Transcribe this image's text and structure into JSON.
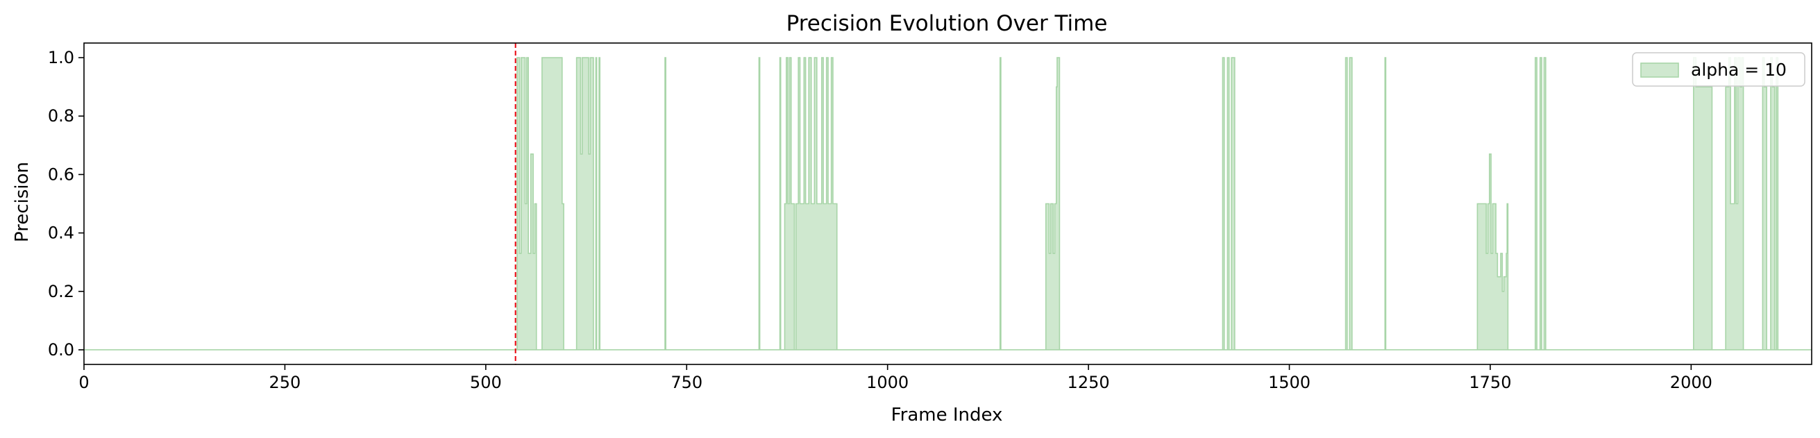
{
  "chart_data": {
    "type": "area",
    "title": "Precision Evolution Over Time",
    "xlabel": "Frame Index",
    "ylabel": "Precision",
    "xlim": [
      0,
      2150
    ],
    "ylim": [
      -0.05,
      1.05
    ],
    "xticks": [
      0,
      250,
      500,
      750,
      1000,
      1250,
      1500,
      1750,
      2000
    ],
    "yticks": [
      0.0,
      0.2,
      0.4,
      0.6,
      0.8,
      1.0
    ],
    "xtick_labels": [
      "0",
      "250",
      "500",
      "750",
      "1000",
      "1250",
      "1500",
      "1750",
      "2000"
    ],
    "ytick_labels": [
      "0.0",
      "0.2",
      "0.4",
      "0.6",
      "0.8",
      "1.0"
    ],
    "grid": false,
    "legend": {
      "position": "top-right",
      "entries": [
        "alpha = 10"
      ]
    },
    "vline": {
      "x": 537,
      "color": "#e8000b",
      "style": "dashed"
    },
    "series": [
      {
        "name": "alpha = 10",
        "color": "#a8d5a8",
        "points": [
          [
            0,
            0
          ],
          [
            537,
            0
          ],
          [
            539,
            0
          ],
          [
            539,
            1
          ],
          [
            542,
            1
          ],
          [
            542,
            0.33
          ],
          [
            544,
            0.33
          ],
          [
            544,
            1
          ],
          [
            549,
            1
          ],
          [
            549,
            0.5
          ],
          [
            551,
            0.5
          ],
          [
            551,
            1
          ],
          [
            553,
            1
          ],
          [
            553,
            0.33
          ],
          [
            556,
            0.33
          ],
          [
            556,
            0.67
          ],
          [
            559,
            0.67
          ],
          [
            559,
            0.33
          ],
          [
            561,
            0.33
          ],
          [
            561,
            0.5
          ],
          [
            563,
            0.5
          ],
          [
            563,
            0
          ],
          [
            570,
            0
          ],
          [
            570,
            1
          ],
          [
            595,
            1
          ],
          [
            595,
            0.5
          ],
          [
            597,
            0.5
          ],
          [
            597,
            0
          ],
          [
            613,
            0
          ],
          [
            613,
            1
          ],
          [
            618,
            1
          ],
          [
            618,
            0.67
          ],
          [
            620,
            0.67
          ],
          [
            620,
            1
          ],
          [
            628,
            1
          ],
          [
            628,
            0.67
          ],
          [
            630,
            0.67
          ],
          [
            630,
            1
          ],
          [
            634,
            1
          ],
          [
            634,
            0
          ],
          [
            637,
            0
          ],
          [
            637,
            1
          ],
          [
            638,
            1
          ],
          [
            638,
            0
          ],
          [
            641,
            0
          ],
          [
            641,
            1
          ],
          [
            642,
            1
          ],
          [
            642,
            0
          ],
          [
            723,
            0
          ],
          [
            723,
            1
          ],
          [
            724,
            1
          ],
          [
            724,
            0
          ],
          [
            840,
            0
          ],
          [
            840,
            1
          ],
          [
            841,
            1
          ],
          [
            841,
            0
          ],
          [
            866,
            0
          ],
          [
            866,
            1
          ],
          [
            867,
            1
          ],
          [
            867,
            0
          ],
          [
            872,
            0
          ],
          [
            872,
            0.5
          ],
          [
            874,
            0.5
          ],
          [
            874,
            1
          ],
          [
            876,
            1
          ],
          [
            876,
            0.5
          ],
          [
            878,
            0.5
          ],
          [
            878,
            1
          ],
          [
            880,
            1
          ],
          [
            880,
            0.5
          ],
          [
            884,
            0.5
          ],
          [
            884,
            0
          ],
          [
            886,
            0
          ],
          [
            886,
            0.5
          ],
          [
            889,
            0.5
          ],
          [
            889,
            1
          ],
          [
            891,
            1
          ],
          [
            891,
            0.5
          ],
          [
            896,
            0.5
          ],
          [
            896,
            1
          ],
          [
            898,
            1
          ],
          [
            898,
            0.5
          ],
          [
            902,
            0.5
          ],
          [
            902,
            1
          ],
          [
            905,
            1
          ],
          [
            905,
            0.5
          ],
          [
            909,
            0.5
          ],
          [
            909,
            1
          ],
          [
            912,
            1
          ],
          [
            912,
            0.5
          ],
          [
            918,
            0.5
          ],
          [
            918,
            1
          ],
          [
            920,
            1
          ],
          [
            920,
            0.5
          ],
          [
            924,
            0.5
          ],
          [
            924,
            1
          ],
          [
            926,
            1
          ],
          [
            926,
            0.5
          ],
          [
            930,
            0.5
          ],
          [
            930,
            1
          ],
          [
            932,
            1
          ],
          [
            932,
            0.5
          ],
          [
            937,
            0.5
          ],
          [
            937,
            0
          ],
          [
            1140,
            0
          ],
          [
            1140,
            1
          ],
          [
            1141,
            1
          ],
          [
            1141,
            0
          ],
          [
            1197,
            0
          ],
          [
            1197,
            0.5
          ],
          [
            1201,
            0.5
          ],
          [
            1201,
            0.33
          ],
          [
            1203,
            0.33
          ],
          [
            1203,
            0.5
          ],
          [
            1206,
            0.5
          ],
          [
            1206,
            0.33
          ],
          [
            1208,
            0.33
          ],
          [
            1208,
            0.5
          ],
          [
            1210,
            0.5
          ],
          [
            1210,
            0.9
          ],
          [
            1211,
            0.9
          ],
          [
            1211,
            1
          ],
          [
            1214,
            1
          ],
          [
            1214,
            0
          ],
          [
            1417,
            0
          ],
          [
            1417,
            1
          ],
          [
            1419,
            1
          ],
          [
            1419,
            0
          ],
          [
            1423,
            0
          ],
          [
            1423,
            1
          ],
          [
            1425,
            1
          ],
          [
            1425,
            0
          ],
          [
            1428,
            0
          ],
          [
            1428,
            1
          ],
          [
            1432,
            1
          ],
          [
            1432,
            0
          ],
          [
            1570,
            0
          ],
          [
            1570,
            1
          ],
          [
            1572,
            1
          ],
          [
            1572,
            0
          ],
          [
            1575,
            0
          ],
          [
            1575,
            1
          ],
          [
            1578,
            1
          ],
          [
            1578,
            0
          ],
          [
            1619,
            0
          ],
          [
            1619,
            1
          ],
          [
            1620,
            1
          ],
          [
            1620,
            0
          ],
          [
            1734,
            0
          ],
          [
            1734,
            0.5
          ],
          [
            1745,
            0.5
          ],
          [
            1745,
            0.33
          ],
          [
            1747,
            0.33
          ],
          [
            1747,
            0.5
          ],
          [
            1749,
            0.5
          ],
          [
            1749,
            0.67
          ],
          [
            1751,
            0.67
          ],
          [
            1751,
            0.33
          ],
          [
            1753,
            0.33
          ],
          [
            1753,
            0.5
          ],
          [
            1757,
            0.5
          ],
          [
            1757,
            0.33
          ],
          [
            1759,
            0.33
          ],
          [
            1759,
            0.25
          ],
          [
            1763,
            0.25
          ],
          [
            1763,
            0.33
          ],
          [
            1765,
            0.33
          ],
          [
            1765,
            0.2
          ],
          [
            1767,
            0.2
          ],
          [
            1767,
            0.25
          ],
          [
            1770,
            0.25
          ],
          [
            1770,
            0.33
          ],
          [
            1771,
            0.33
          ],
          [
            1771,
            0.5
          ],
          [
            1772,
            0.5
          ],
          [
            1772,
            0
          ],
          [
            1806,
            0
          ],
          [
            1806,
            1
          ],
          [
            1808,
            1
          ],
          [
            1808,
            0
          ],
          [
            1812,
            0
          ],
          [
            1812,
            1
          ],
          [
            1814,
            1
          ],
          [
            1814,
            0
          ],
          [
            1817,
            0
          ],
          [
            1817,
            1
          ],
          [
            1819,
            1
          ],
          [
            1819,
            0
          ],
          [
            2003,
            0
          ],
          [
            2003,
            1
          ],
          [
            2006,
            1
          ],
          [
            2006,
            0.9
          ],
          [
            2026,
            0.9
          ],
          [
            2026,
            0
          ],
          [
            2043,
            0
          ],
          [
            2043,
            0.9
          ],
          [
            2047,
            0.9
          ],
          [
            2047,
            1
          ],
          [
            2049,
            1
          ],
          [
            2049,
            0.5
          ],
          [
            2054,
            0.5
          ],
          [
            2054,
            1
          ],
          [
            2056,
            1
          ],
          [
            2056,
            0.5
          ],
          [
            2058,
            0.5
          ],
          [
            2058,
            1
          ],
          [
            2061,
            1
          ],
          [
            2061,
            0.9
          ],
          [
            2063,
            0.9
          ],
          [
            2063,
            1
          ],
          [
            2065,
            1
          ],
          [
            2065,
            0
          ],
          [
            2089,
            0
          ],
          [
            2089,
            1
          ],
          [
            2091,
            1
          ],
          [
            2091,
            0.9
          ],
          [
            2094,
            0.9
          ],
          [
            2094,
            0
          ],
          [
            2099,
            0
          ],
          [
            2099,
            1
          ],
          [
            2101,
            1
          ],
          [
            2101,
            0.9
          ],
          [
            2104,
            0.9
          ],
          [
            2104,
            0
          ],
          [
            2106,
            0
          ],
          [
            2106,
            1
          ],
          [
            2108,
            1
          ],
          [
            2108,
            0
          ],
          [
            2150,
            0
          ]
        ]
      }
    ]
  }
}
